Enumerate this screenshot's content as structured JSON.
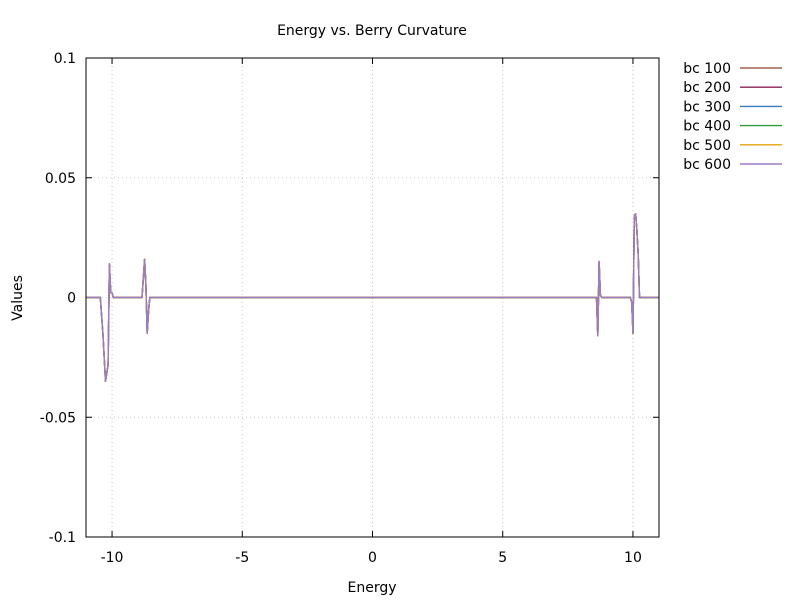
{
  "chart_data": {
    "type": "line",
    "title": "Energy vs. Berry Curvature",
    "xlabel": "Energy",
    "ylabel": "Values",
    "xlim": [
      -11,
      11
    ],
    "ylim": [
      -0.1,
      0.1
    ],
    "xticks": [
      -10,
      -5,
      0,
      5,
      10
    ],
    "xtick_labels": [
      "-10",
      "-5",
      "0",
      "5",
      "10"
    ],
    "yticks": [
      -0.1,
      -0.05,
      0,
      0.05,
      0.1
    ],
    "ytick_labels": [
      "-0.1",
      "-0.05",
      "0",
      "0.05",
      "0.1"
    ],
    "grid": true,
    "legend_position": "outside-top-right",
    "series": [
      {
        "name": "bc 100",
        "color": "#a0634f",
        "x": [
          -11,
          -10.45,
          -10.35,
          -10.25,
          -10.15,
          -10.1,
          -10.05,
          -10.0,
          -9.95,
          -9.9,
          -8.9,
          -8.85,
          -8.75,
          -8.7,
          -8.65,
          -8.6,
          -8.55,
          -8.5,
          8.5,
          8.6,
          8.65,
          8.7,
          8.75,
          8.8,
          8.85,
          9.9,
          9.95,
          10.0,
          10.05,
          10.1,
          10.15,
          10.2,
          10.25,
          10.3,
          10.45,
          11
        ],
        "y": [
          0,
          0,
          -0.015,
          -0.035,
          -0.028,
          0.014,
          0.002,
          0.002,
          0.0,
          0.0,
          0.0,
          0.0,
          0.016,
          0.005,
          -0.015,
          -0.006,
          0.0,
          0.0,
          0.0,
          0.0,
          -0.016,
          0.015,
          0.001,
          0.0,
          0.0,
          0.0,
          -0.002,
          -0.015,
          0.034,
          0.035,
          0.028,
          0.018,
          0.0,
          0.0,
          0.0,
          0
        ]
      },
      {
        "name": "bc 200",
        "color": "#8b2252",
        "x": [
          -11,
          -10.45,
          -10.35,
          -10.25,
          -10.15,
          -10.1,
          -10.05,
          -10.0,
          -9.95,
          -9.9,
          -8.9,
          -8.85,
          -8.75,
          -8.7,
          -8.65,
          -8.6,
          -8.55,
          -8.5,
          8.5,
          8.6,
          8.65,
          8.7,
          8.75,
          8.8,
          8.85,
          9.9,
          9.95,
          10.0,
          10.05,
          10.1,
          10.15,
          10.2,
          10.25,
          10.3,
          10.45,
          11
        ],
        "y": [
          0,
          0,
          -0.015,
          -0.035,
          -0.028,
          0.014,
          0.002,
          0.002,
          0.0,
          0.0,
          0.0,
          0.0,
          0.016,
          0.005,
          -0.015,
          -0.006,
          0.0,
          0.0,
          0.0,
          0.0,
          -0.016,
          0.015,
          0.001,
          0.0,
          0.0,
          0.0,
          -0.002,
          -0.015,
          0.034,
          0.035,
          0.028,
          0.018,
          0.0,
          0.0,
          0.0,
          0
        ]
      },
      {
        "name": "bc 300",
        "color": "#3a7bbf",
        "x": [
          -11,
          -10.45,
          -10.35,
          -10.25,
          -10.15,
          -10.1,
          -10.05,
          -10.0,
          -9.95,
          -9.9,
          -8.9,
          -8.85,
          -8.75,
          -8.7,
          -8.65,
          -8.6,
          -8.55,
          -8.5,
          8.5,
          8.6,
          8.65,
          8.7,
          8.75,
          8.8,
          8.85,
          9.9,
          9.95,
          10.0,
          10.05,
          10.1,
          10.15,
          10.2,
          10.25,
          10.3,
          10.45,
          11
        ],
        "y": [
          0,
          0,
          -0.015,
          -0.035,
          -0.028,
          0.014,
          0.002,
          0.002,
          0.0,
          0.0,
          0.0,
          0.0,
          0.016,
          0.005,
          -0.015,
          -0.006,
          0.0,
          0.0,
          0.0,
          0.0,
          -0.016,
          0.015,
          0.001,
          0.0,
          0.0,
          0.0,
          -0.002,
          -0.015,
          0.034,
          0.035,
          0.028,
          0.018,
          0.0,
          0.0,
          0.0,
          0
        ]
      },
      {
        "name": "bc 400",
        "color": "#2e9e3a",
        "x": [
          -11,
          -10.45,
          -10.35,
          -10.25,
          -10.15,
          -10.1,
          -10.05,
          -10.0,
          -9.95,
          -9.9,
          -8.9,
          -8.85,
          -8.75,
          -8.7,
          -8.65,
          -8.6,
          -8.55,
          -8.5,
          8.5,
          8.6,
          8.65,
          8.7,
          8.75,
          8.8,
          8.85,
          9.9,
          9.95,
          10.0,
          10.05,
          10.1,
          10.15,
          10.2,
          10.25,
          10.3,
          10.45,
          11
        ],
        "y": [
          0,
          0,
          -0.015,
          -0.035,
          -0.028,
          0.014,
          0.002,
          0.002,
          0.0,
          0.0,
          0.0,
          0.0,
          0.016,
          0.005,
          -0.015,
          -0.006,
          0.0,
          0.0,
          0.0,
          0.0,
          -0.016,
          0.015,
          0.001,
          0.0,
          0.0,
          0.0,
          -0.002,
          -0.015,
          0.034,
          0.035,
          0.028,
          0.018,
          0.0,
          0.0,
          0.0,
          0
        ]
      },
      {
        "name": "bc 500",
        "color": "#e5a50a",
        "x": [
          -11,
          -10.45,
          -10.35,
          -10.25,
          -10.15,
          -10.1,
          -10.05,
          -10.0,
          -9.95,
          -9.9,
          -8.9,
          -8.85,
          -8.75,
          -8.7,
          -8.65,
          -8.6,
          -8.55,
          -8.5,
          8.5,
          8.6,
          8.65,
          8.7,
          8.75,
          8.8,
          8.85,
          9.9,
          9.95,
          10.0,
          10.05,
          10.1,
          10.15,
          10.2,
          10.25,
          10.3,
          10.45,
          11
        ],
        "y": [
          0,
          0,
          -0.015,
          -0.035,
          -0.028,
          0.014,
          0.002,
          0.002,
          0.0,
          0.0,
          0.0,
          0.0,
          0.016,
          0.005,
          -0.015,
          -0.006,
          0.0,
          0.0,
          0.0,
          0.0,
          -0.016,
          0.015,
          0.001,
          0.0,
          0.0,
          0.0,
          -0.002,
          -0.015,
          0.034,
          0.035,
          0.028,
          0.018,
          0.0,
          0.0,
          0.0,
          0
        ]
      },
      {
        "name": "bc 600",
        "color": "#9f7ac4",
        "x": [
          -11,
          -10.45,
          -10.35,
          -10.25,
          -10.15,
          -10.1,
          -10.05,
          -10.0,
          -9.95,
          -9.9,
          -8.9,
          -8.85,
          -8.75,
          -8.7,
          -8.65,
          -8.6,
          -8.55,
          -8.5,
          8.5,
          8.6,
          8.65,
          8.7,
          8.75,
          8.8,
          8.85,
          9.9,
          9.95,
          10.0,
          10.05,
          10.1,
          10.15,
          10.2,
          10.25,
          10.3,
          10.45,
          11
        ],
        "y": [
          0,
          0,
          -0.015,
          -0.035,
          -0.028,
          0.014,
          0.002,
          0.002,
          0.0,
          0.0,
          0.0,
          0.0,
          0.016,
          0.005,
          -0.015,
          -0.006,
          0.0,
          0.0,
          0.0,
          0.0,
          -0.016,
          0.015,
          0.001,
          0.0,
          0.0,
          0.0,
          -0.002,
          -0.015,
          0.034,
          0.035,
          0.028,
          0.018,
          0.0,
          0.0,
          0.0,
          0
        ]
      }
    ]
  }
}
